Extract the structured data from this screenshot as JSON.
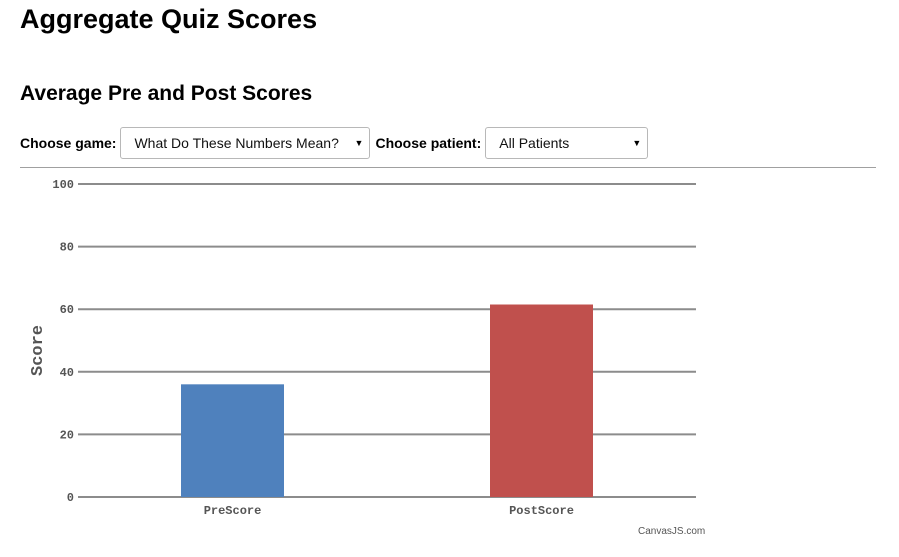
{
  "page": {
    "title": "Aggregate Quiz Scores",
    "section_title": "Average Pre and Post Scores"
  },
  "controls": {
    "game_label": "Choose game:",
    "game_selected": "What Do These Numbers Mean?",
    "patient_label": "Choose patient:",
    "patient_selected": "All Patients"
  },
  "chart_data": {
    "type": "bar",
    "categories": [
      "PreScore",
      "PostScore"
    ],
    "values": [
      36,
      61.5
    ],
    "colors": [
      "#4f81bd",
      "#c0504d"
    ],
    "title": "",
    "xlabel": "",
    "ylabel": "Score",
    "ylim": [
      0,
      100
    ],
    "yticks": [
      0,
      20,
      40,
      60,
      80,
      100
    ],
    "grid": true,
    "legend": "none",
    "credit": "CanvasJS.com"
  }
}
